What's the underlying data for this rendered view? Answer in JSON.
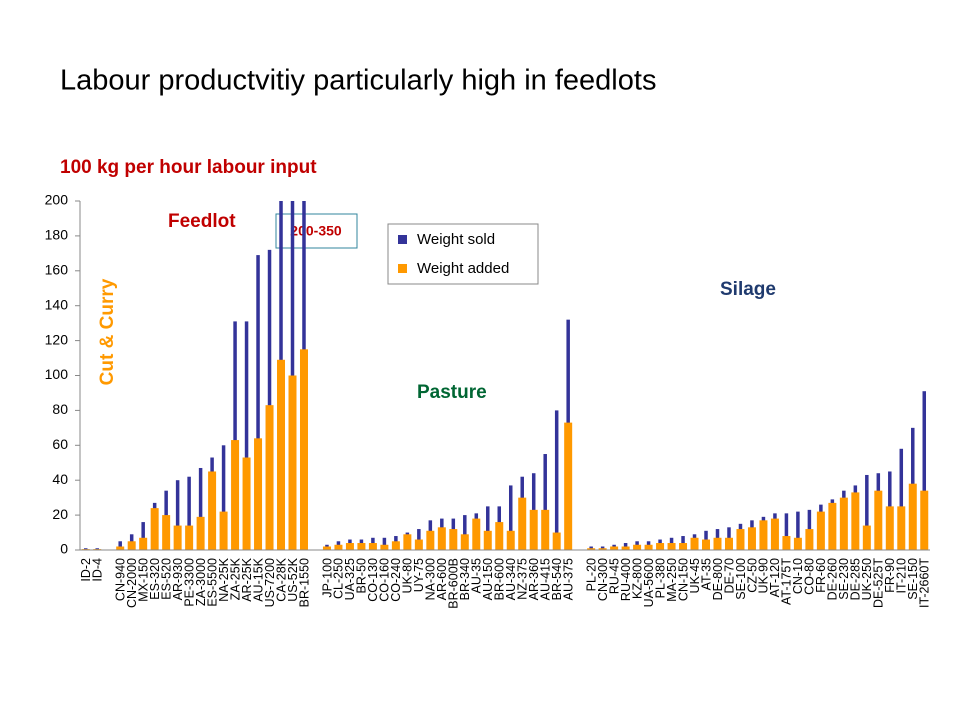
{
  "chart_data": {
    "type": "bar",
    "title": "Labour productvitiy particularly high in feedlots",
    "subtitle": "100 kg per hour labour input",
    "annotations": [
      "Feedlot",
      "200-350",
      "Cut & Curry",
      "Pasture",
      "Silage"
    ],
    "categories": [
      "ID-2",
      "ID-4",
      null,
      "CN-940",
      "CN-2000",
      "MX-150",
      "ES-320",
      "ES-520",
      "AR-930",
      "PE-3300",
      "ZA-3000",
      "ES-5500",
      "NA-25K",
      "ZA-25K",
      "AR-25K",
      "AU-15K",
      "US-7200",
      "CA-28K",
      "US-52K",
      "BR-1550",
      null,
      "JP-100",
      "CL-250",
      "UA-325",
      "BR-50",
      "CO-130",
      "CO-160",
      "CO-240",
      "UK-80",
      "UY-75",
      "NA-300",
      "AR-600",
      "BR-600B",
      "BR-340",
      "AU-35",
      "AU-150",
      "BR-600",
      "AU-340",
      "NZ-375",
      "AR-360",
      "AU-415",
      "BR-540",
      "AU-375",
      null,
      "PL-20",
      "CN-300",
      "RU-45",
      "RU-400",
      "KZ-800",
      "UA-5600",
      "PL-380",
      "MA-250",
      "CN-150",
      "UK-45",
      "AT-35",
      "DE-800",
      "DE-70",
      "SE-100",
      "CZ-50",
      "UK-90",
      "AT-120",
      "AT-175T",
      "CN-10",
      "CO-80",
      "FR-60",
      "DE-260",
      "SE-230",
      "DE-285",
      "UK-250",
      "DE-525T",
      "FR-90",
      "IT-210",
      "SE-150",
      "IT-2660T"
    ],
    "series": [
      {
        "name": "Weight sold",
        "color": "#333399",
        "values": [
          1,
          1,
          null,
          5,
          9,
          16,
          27,
          34,
          40,
          42,
          47,
          53,
          60,
          131,
          131,
          169,
          172,
          200,
          200,
          200,
          null,
          3,
          5,
          6,
          6,
          7,
          7,
          8,
          10,
          12,
          17,
          18,
          18,
          20,
          21,
          25,
          25,
          37,
          42,
          44,
          55,
          80,
          132,
          null,
          2,
          2,
          3,
          4,
          5,
          5,
          6,
          7,
          8,
          9,
          11,
          12,
          13,
          15,
          17,
          19,
          21,
          21,
          22,
          23,
          26,
          29,
          34,
          37,
          43,
          44,
          45,
          58,
          70,
          91
        ]
      },
      {
        "name": "Weight added",
        "color": "#ff9900",
        "values": [
          0.5,
          0.5,
          null,
          2,
          5,
          7,
          24,
          20,
          14,
          14,
          19,
          45,
          22,
          63,
          53,
          64,
          83,
          109,
          100,
          115,
          null,
          2,
          3,
          4,
          4,
          4,
          3,
          5,
          9,
          6,
          11,
          13,
          12,
          9,
          18,
          11,
          16,
          11,
          30,
          23,
          23,
          10,
          73,
          null,
          1,
          1,
          2,
          2,
          3,
          3,
          4,
          4,
          4,
          7,
          6,
          7,
          7,
          12,
          13,
          17,
          18,
          8,
          7,
          12,
          22,
          27,
          30,
          33,
          14,
          34,
          25,
          25,
          38,
          34
        ]
      }
    ],
    "ylim": [
      0,
      200
    ],
    "yticks": [
      0,
      20,
      40,
      60,
      80,
      100,
      120,
      140,
      160,
      180,
      200
    ]
  }
}
